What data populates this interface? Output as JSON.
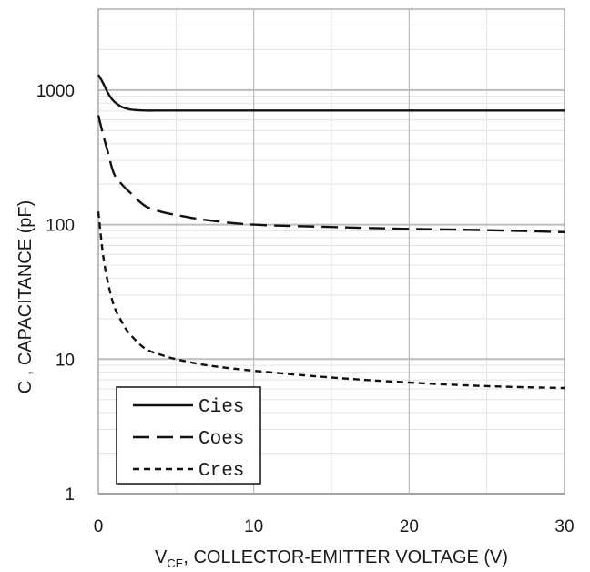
{
  "chart_data": {
    "type": "line",
    "xlabel_main": "V",
    "xlabel_sub": "CE",
    "xlabel_rest": ", COLLECTOR-EMITTER VOLTAGE (V)",
    "ylabel": "C , CAPACITANCE (pF)",
    "xlim": [
      0,
      30
    ],
    "ylim": [
      1,
      4000
    ],
    "yscale": "log",
    "xticks": [
      0,
      10,
      20,
      30
    ],
    "xtick_labels": [
      "0",
      "10",
      "20",
      "30"
    ],
    "yticks": [
      1,
      10,
      100,
      1000
    ],
    "ytick_labels": [
      "1",
      "10",
      "100",
      "1000"
    ],
    "grid": true,
    "legend_position": "bottom-left",
    "series": [
      {
        "name": "Cies",
        "style": "solid",
        "x": [
          0,
          0.3,
          0.6,
          0.9,
          1.2,
          1.5,
          2,
          2.5,
          3,
          4,
          5,
          10,
          15,
          20,
          25,
          30
        ],
        "y": [
          1300,
          1130,
          960,
          850,
          790,
          750,
          720,
          710,
          705,
          705,
          705,
          705,
          705,
          705,
          705,
          705
        ]
      },
      {
        "name": "Coes",
        "style": "dashed",
        "x": [
          0,
          0.3,
          0.6,
          1,
          1.5,
          2,
          3,
          4,
          5,
          7,
          10,
          15,
          20,
          25,
          30
        ],
        "y": [
          650,
          470,
          350,
          240,
          200,
          175,
          138,
          125,
          118,
          108,
          100,
          96,
          93,
          91,
          88
        ]
      },
      {
        "name": "Cres",
        "style": "short-dash",
        "x": [
          0,
          0.3,
          0.6,
          1,
          1.5,
          2,
          3,
          4,
          5,
          7,
          10,
          15,
          20,
          25,
          30
        ],
        "y": [
          125,
          60,
          38,
          25,
          19,
          15.5,
          12,
          10.8,
          10,
          9,
          8.2,
          7.3,
          6.7,
          6.3,
          6.1
        ]
      }
    ]
  }
}
